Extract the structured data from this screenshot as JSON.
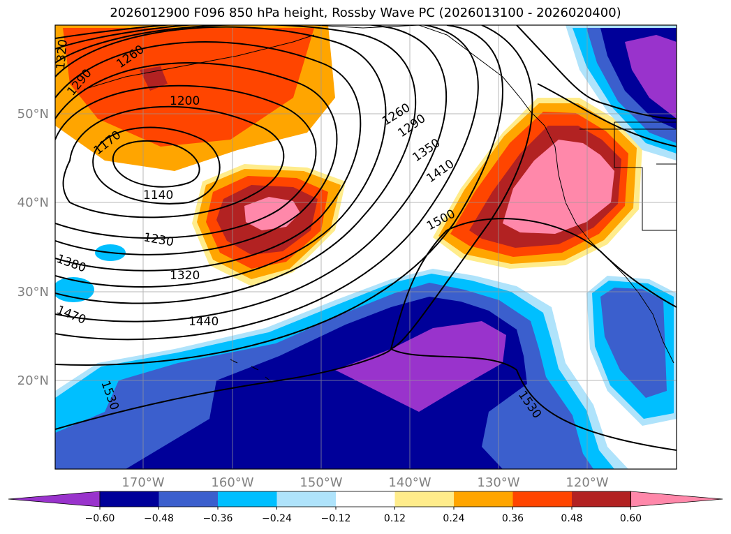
{
  "title": "2026012900 F096 850 hPa height, Rossby Wave PC (2026013100 - 2026020400)",
  "map": {
    "lat_labels": [
      "50°N",
      "40°N",
      "30°N",
      "20°N"
    ],
    "lon_labels": [
      "170°W",
      "160°W",
      "150°W",
      "140°W",
      "130°W",
      "120°W"
    ],
    "contour_labels": [
      "1320",
      "1260",
      "1290",
      "1200",
      "1170",
      "1140",
      "1230",
      "1320",
      "1380",
      "1440",
      "1470",
      "1530",
      "1260",
      "1290",
      "1350",
      "1410",
      "1500",
      "1530"
    ]
  },
  "colorbar": {
    "ticks": [
      "−0.60",
      "−0.48",
      "−0.36",
      "−0.24",
      "−0.12",
      "0.12",
      "0.24",
      "0.36",
      "0.48",
      "0.60"
    ],
    "colors": [
      "#9933cc",
      "#000099",
      "#3b5fcd",
      "#00bfff",
      "#afe3fb",
      "#ffffff",
      "#ffec8b",
      "#ffa500",
      "#ff4500",
      "#b22222",
      "#ff88aa"
    ]
  }
}
